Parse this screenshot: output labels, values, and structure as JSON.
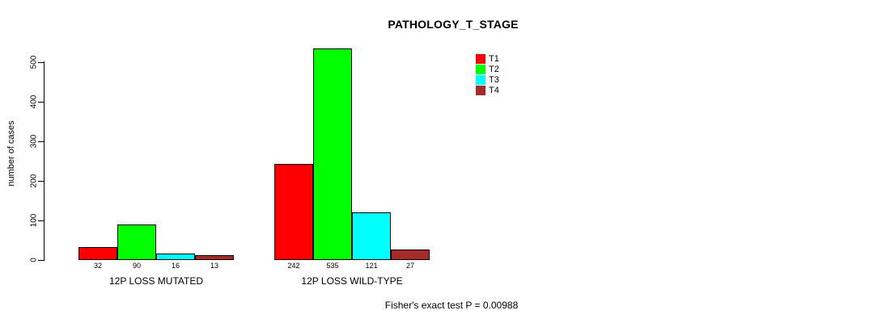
{
  "chart_data": {
    "type": "bar",
    "title": "PATHOLOGY_T_STAGE",
    "ylabel": "number of cases",
    "xlabel": "",
    "ylim": [
      0,
      500
    ],
    "yticks": [
      0,
      100,
      200,
      300,
      400,
      500
    ],
    "grid": false,
    "legend_position": "top-right",
    "bar_value_labels_shown": true,
    "categories": [
      "12P LOSS MUTATED",
      "12P LOSS WILD-TYPE"
    ],
    "series": [
      {
        "name": "T1",
        "color": "#FF0000",
        "values": [
          32,
          242
        ]
      },
      {
        "name": "T2",
        "color": "#00FF00",
        "values": [
          90,
          535
        ]
      },
      {
        "name": "T3",
        "color": "#00FFFF",
        "values": [
          16,
          121
        ]
      },
      {
        "name": "T4",
        "color": "#A52A2A",
        "values": [
          13,
          27
        ]
      }
    ],
    "annotation": "Fisher's exact test P = 0.00988"
  },
  "colors": {
    "axis": "#000000",
    "bar_border": "#000000",
    "background": "#FFFFFF",
    "text": "#000000"
  }
}
